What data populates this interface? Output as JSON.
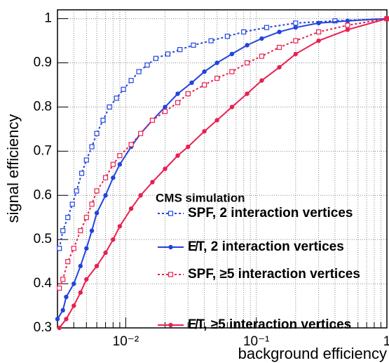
{
  "chart_data": {
    "type": "line",
    "xlabel": "background efficiency",
    "ylabel": "signal efficiency",
    "legend_title": "CMS simulation",
    "xscale": "log",
    "grid": true,
    "xlim": [
      0.003,
      1
    ],
    "ylim": [
      0.3,
      1.02
    ],
    "xticks": [
      {
        "value": 0.01,
        "label": "10⁻²"
      },
      {
        "value": 0.1,
        "label": "10⁻¹"
      },
      1
    ],
    "xminorticks": [
      0.004,
      0.005,
      0.006,
      0.007,
      0.008,
      0.009,
      0.02,
      0.03,
      0.04,
      0.05,
      0.06,
      0.07,
      0.08,
      0.09,
      0.2,
      0.3,
      0.4,
      0.5,
      0.6,
      0.7,
      0.8,
      0.9
    ],
    "yticks": [
      0.3,
      0.4,
      0.5,
      0.6,
      0.7,
      0.8,
      0.9,
      1
    ],
    "series": [
      {
        "name": "SPF, 2 interaction vertices",
        "color": "#2244dd",
        "dashed": true,
        "marker": "square",
        "x": [
          0.0031,
          0.0033,
          0.0036,
          0.0039,
          0.0042,
          0.0046,
          0.005,
          0.0055,
          0.006,
          0.0067,
          0.0075,
          0.0085,
          0.0096,
          0.011,
          0.0126,
          0.0146,
          0.017,
          0.021,
          0.026,
          0.033,
          0.045,
          0.06,
          0.08,
          0.12,
          0.2,
          0.4,
          1.0
        ],
        "values": [
          0.48,
          0.52,
          0.55,
          0.58,
          0.61,
          0.65,
          0.68,
          0.71,
          0.74,
          0.77,
          0.8,
          0.82,
          0.84,
          0.86,
          0.88,
          0.895,
          0.91,
          0.92,
          0.93,
          0.94,
          0.95,
          0.96,
          0.97,
          0.98,
          0.99,
          0.995,
          1.0
        ]
      },
      {
        "name": "E̸T,  2 interaction vertices",
        "color": "#2244dd",
        "dashed": false,
        "marker": "circle",
        "x": [
          0.003,
          0.0033,
          0.0035,
          0.004,
          0.0045,
          0.005,
          0.0055,
          0.006,
          0.007,
          0.008,
          0.009,
          0.011,
          0.013,
          0.016,
          0.02,
          0.025,
          0.032,
          0.04,
          0.05,
          0.065,
          0.085,
          0.11,
          0.15,
          0.2,
          0.3,
          0.5,
          1.0
        ],
        "values": [
          0.32,
          0.34,
          0.37,
          0.4,
          0.44,
          0.48,
          0.52,
          0.56,
          0.6,
          0.64,
          0.67,
          0.71,
          0.74,
          0.77,
          0.8,
          0.83,
          0.855,
          0.88,
          0.9,
          0.92,
          0.94,
          0.955,
          0.97,
          0.98,
          0.99,
          0.995,
          1.0
        ]
      },
      {
        "name": "SPF, ≥5 interaction vertices",
        "color": "#e82050",
        "dashed": true,
        "marker": "square",
        "x": [
          0.0031,
          0.0033,
          0.0036,
          0.004,
          0.0045,
          0.005,
          0.0055,
          0.006,
          0.007,
          0.008,
          0.009,
          0.011,
          0.013,
          0.016,
          0.02,
          0.025,
          0.03,
          0.04,
          0.05,
          0.065,
          0.085,
          0.11,
          0.15,
          0.2,
          0.3,
          0.5,
          1.0
        ],
        "values": [
          0.39,
          0.41,
          0.45,
          0.48,
          0.52,
          0.55,
          0.58,
          0.61,
          0.64,
          0.67,
          0.69,
          0.715,
          0.74,
          0.77,
          0.79,
          0.81,
          0.83,
          0.85,
          0.865,
          0.88,
          0.9,
          0.915,
          0.935,
          0.95,
          0.97,
          0.985,
          1.0
        ]
      },
      {
        "name": "E̸T,  ≥5 interaction vertices",
        "color": "#e82050",
        "dashed": false,
        "marker": "circle",
        "x": [
          0.0031,
          0.0035,
          0.004,
          0.0045,
          0.005,
          0.006,
          0.007,
          0.008,
          0.009,
          0.011,
          0.013,
          0.016,
          0.02,
          0.025,
          0.03,
          0.04,
          0.05,
          0.065,
          0.085,
          0.11,
          0.15,
          0.2,
          0.3,
          0.5,
          1.0
        ],
        "values": [
          0.3,
          0.32,
          0.35,
          0.38,
          0.41,
          0.44,
          0.47,
          0.5,
          0.53,
          0.57,
          0.6,
          0.63,
          0.66,
          0.69,
          0.71,
          0.745,
          0.77,
          0.8,
          0.83,
          0.86,
          0.89,
          0.92,
          0.95,
          0.975,
          1.0
        ]
      }
    ]
  }
}
